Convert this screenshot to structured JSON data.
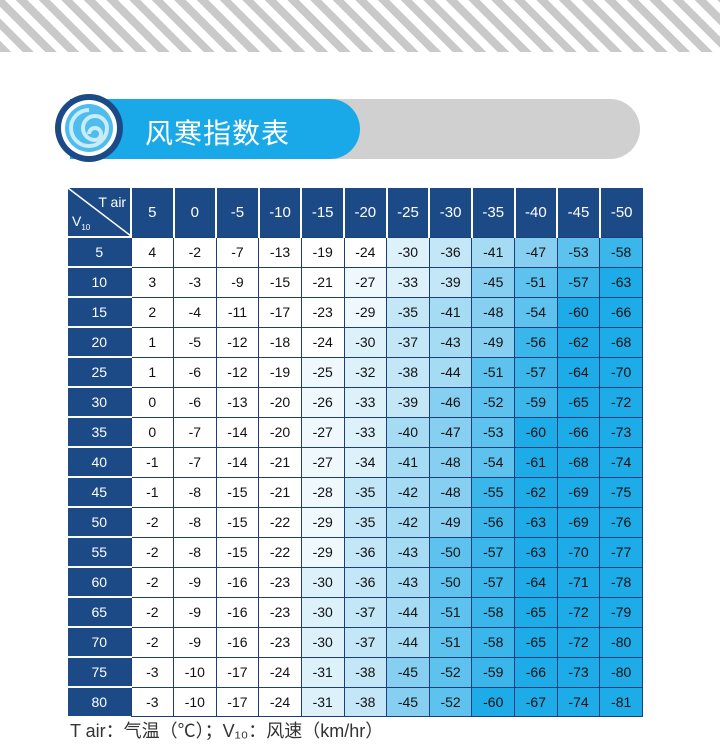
{
  "title": "风寒指数表",
  "table": {
    "corner_top": "T air",
    "corner_bottom": "V",
    "corner_sub": "10",
    "columns": [
      "5",
      "0",
      "-5",
      "-10",
      "-15",
      "-20",
      "-25",
      "-30",
      "-35",
      "-40",
      "-45",
      "-50"
    ],
    "rows": [
      {
        "v": "5",
        "vals": [
          4,
          -2,
          -7,
          -13,
          -19,
          -24,
          -30,
          -36,
          -41,
          -47,
          -53,
          -58
        ]
      },
      {
        "v": "10",
        "vals": [
          3,
          -3,
          -9,
          -15,
          -21,
          -27,
          -33,
          -39,
          -45,
          -51,
          -57,
          -63
        ]
      },
      {
        "v": "15",
        "vals": [
          2,
          -4,
          -11,
          -17,
          -23,
          -29,
          -35,
          -41,
          -48,
          -54,
          -60,
          -66
        ]
      },
      {
        "v": "20",
        "vals": [
          1,
          -5,
          -12,
          -18,
          -24,
          -30,
          -37,
          -43,
          -49,
          -56,
          -62,
          -68
        ]
      },
      {
        "v": "25",
        "vals": [
          1,
          -6,
          -12,
          -19,
          -25,
          -32,
          -38,
          -44,
          -51,
          -57,
          -64,
          -70
        ]
      },
      {
        "v": "30",
        "vals": [
          0,
          -6,
          -13,
          -20,
          -26,
          -33,
          -39,
          -46,
          -52,
          -59,
          -65,
          -72
        ]
      },
      {
        "v": "35",
        "vals": [
          0,
          -7,
          -14,
          -20,
          -27,
          -33,
          -40,
          -47,
          -53,
          -60,
          -66,
          -73
        ]
      },
      {
        "v": "40",
        "vals": [
          -1,
          -7,
          -14,
          -21,
          -27,
          -34,
          -41,
          -48,
          -54,
          -61,
          -68,
          -74
        ]
      },
      {
        "v": "45",
        "vals": [
          -1,
          -8,
          -15,
          -21,
          -28,
          -35,
          -42,
          -48,
          -55,
          -62,
          -69,
          -75
        ]
      },
      {
        "v": "50",
        "vals": [
          -2,
          -8,
          -15,
          -22,
          -29,
          -35,
          -42,
          -49,
          -56,
          -63,
          -69,
          -76
        ]
      },
      {
        "v": "55",
        "vals": [
          -2,
          -8,
          -15,
          -22,
          -29,
          -36,
          -43,
          -50,
          -57,
          -63,
          -70,
          -77
        ]
      },
      {
        "v": "60",
        "vals": [
          -2,
          -9,
          -16,
          -23,
          -30,
          -36,
          -43,
          -50,
          -57,
          -64,
          -71,
          -78
        ]
      },
      {
        "v": "65",
        "vals": [
          -2,
          -9,
          -16,
          -23,
          -30,
          -37,
          -44,
          -51,
          -58,
          -65,
          -72,
          -79
        ]
      },
      {
        "v": "70",
        "vals": [
          -2,
          -9,
          -16,
          -23,
          -30,
          -37,
          -44,
          -51,
          -58,
          -65,
          -72,
          -80
        ]
      },
      {
        "v": "75",
        "vals": [
          -3,
          -10,
          -17,
          -24,
          -31,
          -38,
          -45,
          -52,
          -59,
          -66,
          -73,
          -80
        ]
      },
      {
        "v": "80",
        "vals": [
          -3,
          -10,
          -17,
          -24,
          -31,
          -38,
          -45,
          -52,
          -60,
          -67,
          -74,
          -81
        ]
      }
    ]
  },
  "footnote": "T air：气温（℃）；V₁₀：风速（km/hr）",
  "colors": {
    "header": "#1c4a86",
    "accent": "#19a9e8",
    "banner_gray": "#d0d0d0"
  }
}
